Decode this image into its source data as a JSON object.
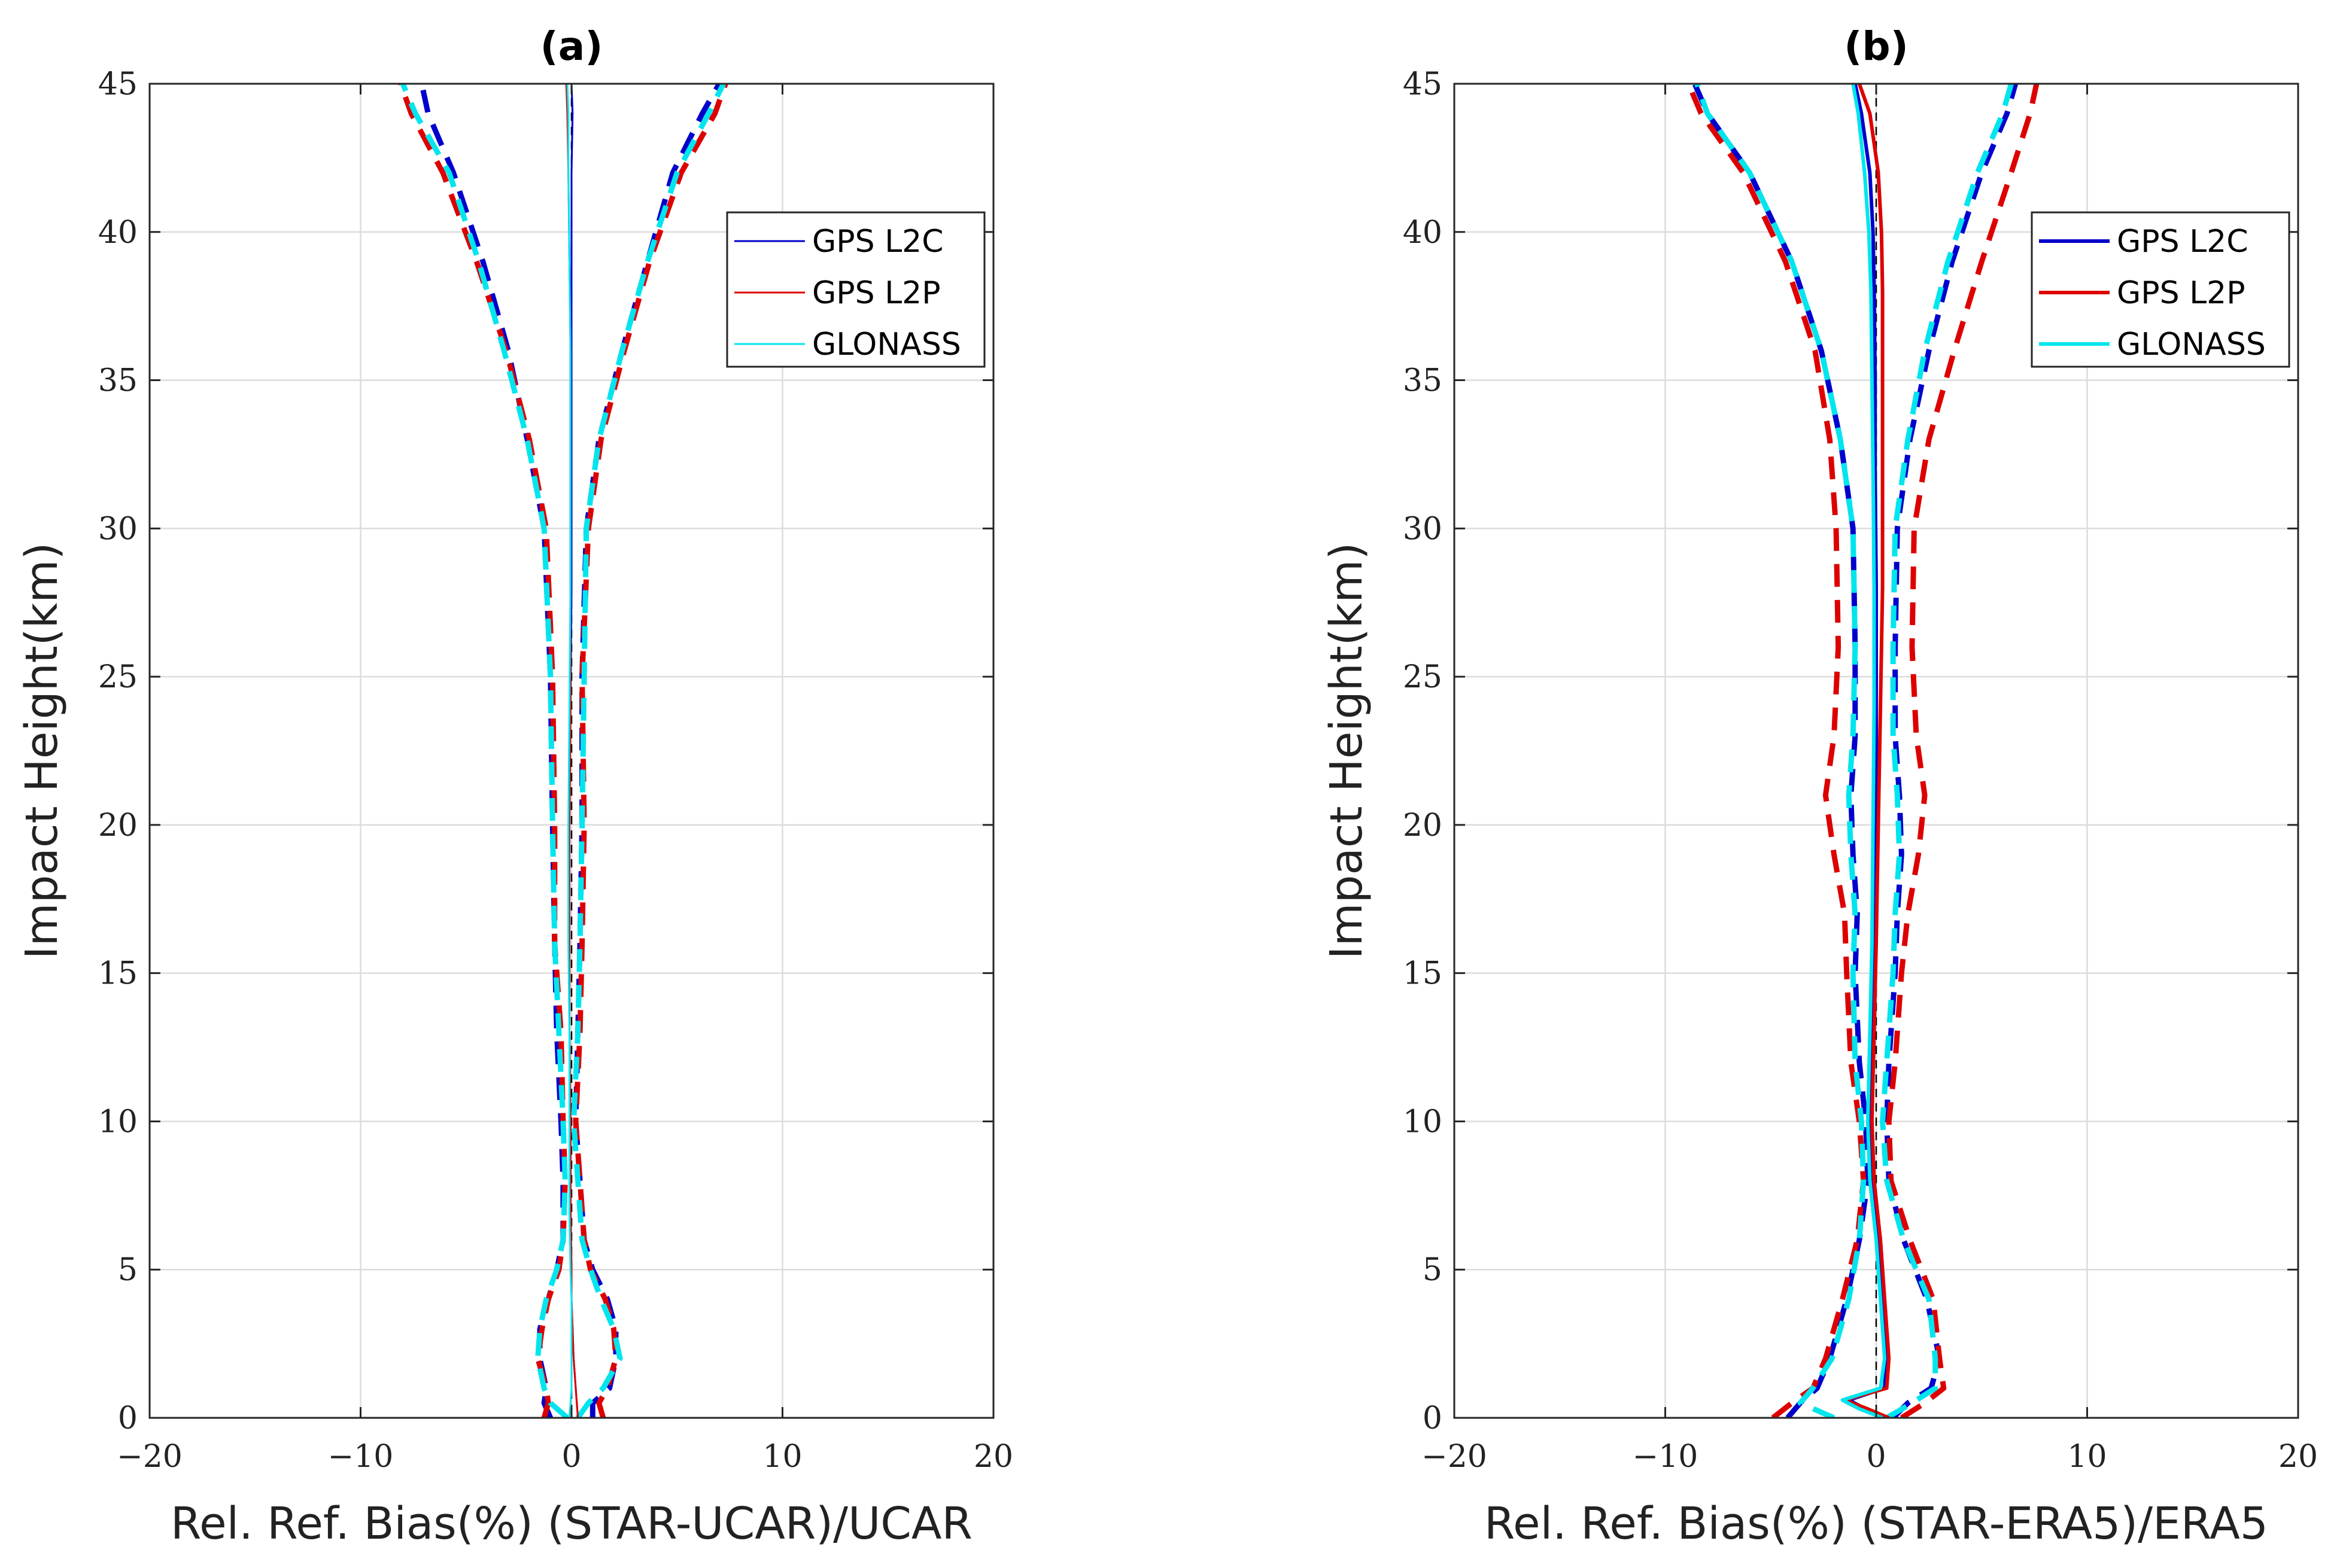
{
  "chart_data": [
    {
      "type": "line",
      "title": "(a)",
      "xlabel": "Rel. Ref. Bias(%) (STAR-UCAR)/UCAR",
      "ylabel": "Impact Height(km)",
      "xlim": [
        -20,
        20
      ],
      "ylim": [
        0,
        45
      ],
      "xticks": [
        "−20",
        "−10",
        "0",
        "10",
        "20"
      ],
      "yticks": [
        "0",
        "5",
        "10",
        "15",
        "20",
        "25",
        "30",
        "35",
        "40",
        "45"
      ],
      "grid": true,
      "legend_position": "top-right",
      "legend": [
        "GPS L2C",
        "GPS L2P",
        "GLONASS"
      ],
      "series": [
        {
          "name": "GPS L2C",
          "color": "#0000cc",
          "style": "solid",
          "width": 3,
          "x": [
            0.3,
            0.25,
            0.2,
            0.1,
            0.05,
            0.0,
            0.0,
            -0.05,
            -0.05,
            -0.1,
            -0.1,
            -0.1,
            -0.05,
            0.0,
            0.0,
            0.0,
            0.0,
            0.0,
            0.05,
            0.0
          ],
          "y": [
            0,
            0.5,
            1,
            2,
            3,
            4,
            5,
            7,
            10,
            13,
            16,
            20,
            24,
            28,
            32,
            36,
            39,
            42,
            44,
            45
          ]
        },
        {
          "name": "GPS L2P",
          "color": "#dd0000",
          "style": "solid",
          "width": 3,
          "x": [
            0.3,
            0.25,
            0.2,
            0.1,
            0.05,
            0.0,
            0.0,
            -0.05,
            -0.05,
            -0.1,
            -0.1,
            -0.1,
            -0.05,
            -0.05,
            -0.05,
            -0.05,
            -0.1,
            -0.15,
            -0.2,
            -0.25
          ],
          "y": [
            0,
            0.5,
            1,
            2,
            3,
            4,
            5,
            7,
            10,
            13,
            16,
            20,
            24,
            28,
            32,
            36,
            39,
            42,
            44,
            45
          ]
        },
        {
          "name": "GLONASS",
          "color": "#00e5ee",
          "style": "solid",
          "width": 3,
          "x": [
            -0.1,
            -0.05,
            0.0,
            0.0,
            0.0,
            0.0,
            -0.05,
            -0.1,
            -0.1,
            -0.1,
            -0.15,
            -0.15,
            -0.1,
            -0.05,
            -0.05,
            -0.05,
            -0.1,
            -0.15,
            -0.15,
            -0.2
          ],
          "y": [
            0,
            0.5,
            1,
            2,
            3,
            4,
            5,
            7,
            10,
            13,
            16,
            20,
            24,
            28,
            32,
            36,
            39,
            42,
            44,
            45
          ]
        },
        {
          "name": "",
          "color": "#0000cc",
          "style": "dashed",
          "width": 9,
          "x": [
            -1.0,
            -1.3,
            -1.2,
            -1.5,
            -1.5,
            -1.1,
            -0.7,
            -0.4,
            -0.4,
            -0.5,
            -0.7,
            -0.8,
            -0.9,
            -1.0,
            -1.3,
            -2.1,
            -3.0,
            -4.2,
            -5.6,
            -6.8,
            -7.1
          ],
          "y": [
            0,
            0.5,
            1,
            2,
            3,
            4,
            5,
            6,
            8,
            10,
            13,
            16,
            20,
            25,
            30,
            33,
            36,
            39,
            42,
            44,
            45
          ]
        },
        {
          "name": "",
          "color": "#0000cc",
          "style": "dashed",
          "width": 9,
          "x": [
            1.0,
            1.0,
            1.8,
            2.1,
            2.1,
            1.7,
            1.0,
            0.6,
            0.4,
            0.2,
            0.3,
            0.4,
            0.5,
            0.5,
            0.7,
            1.3,
            2.4,
            3.6,
            4.8,
            6.2,
            7.0
          ],
          "y": [
            0,
            0.5,
            1,
            2,
            3,
            4,
            5,
            6,
            8,
            10,
            13,
            16,
            20,
            25,
            30,
            33,
            36,
            39,
            42,
            44,
            45
          ]
        },
        {
          "name": "",
          "color": "#dd0000",
          "style": "dashed",
          "width": 9,
          "x": [
            -1.3,
            -1.1,
            -1.2,
            -1.6,
            -1.4,
            -1.1,
            -0.6,
            -0.4,
            -0.3,
            -0.4,
            -0.5,
            -0.8,
            -0.8,
            -0.9,
            -1.2,
            -2.0,
            -3.1,
            -4.5,
            -6.1,
            -7.6,
            -8.1
          ],
          "y": [
            0,
            0.5,
            1,
            2,
            3,
            4,
            5,
            6,
            8,
            10,
            13,
            16,
            20,
            25,
            30,
            33,
            36,
            39,
            42,
            44,
            45
          ]
        },
        {
          "name": "",
          "color": "#dd0000",
          "style": "dashed",
          "width": 9,
          "x": [
            1.5,
            1.3,
            1.7,
            2.1,
            2.0,
            1.6,
            0.9,
            0.6,
            0.4,
            0.2,
            0.4,
            0.5,
            0.6,
            0.5,
            0.8,
            1.4,
            2.5,
            3.7,
            5.2,
            6.8,
            7.3
          ],
          "y": [
            0,
            0.5,
            1,
            2,
            3,
            4,
            5,
            6,
            8,
            10,
            13,
            16,
            20,
            25,
            30,
            33,
            36,
            39,
            42,
            44,
            45
          ]
        },
        {
          "name": "",
          "color": "#00e5ee",
          "style": "dashed",
          "width": 9,
          "x": [
            -0.2,
            -1.0,
            -1.3,
            -1.6,
            -1.5,
            -1.2,
            -0.7,
            -0.4,
            -0.3,
            -0.4,
            -0.6,
            -0.8,
            -0.9,
            -1.0,
            -1.3,
            -2.1,
            -3.2,
            -4.4,
            -5.8,
            -7.4,
            -8.0
          ],
          "y": [
            0,
            0.5,
            1,
            2,
            3,
            4,
            5,
            6,
            8,
            10,
            13,
            16,
            20,
            25,
            30,
            33,
            36,
            39,
            42,
            44,
            45
          ]
        },
        {
          "name": "",
          "color": "#00e5ee",
          "style": "dashed",
          "width": 9,
          "x": [
            0.3,
            0.8,
            1.5,
            2.3,
            2.0,
            1.4,
            0.9,
            0.5,
            0.3,
            0.1,
            0.3,
            0.4,
            0.5,
            0.6,
            0.7,
            1.3,
            2.4,
            3.6,
            5.0,
            6.5,
            7.2
          ],
          "y": [
            0,
            0.5,
            1,
            2,
            3,
            4,
            5,
            6,
            8,
            10,
            13,
            16,
            20,
            25,
            30,
            33,
            36,
            39,
            42,
            44,
            45
          ]
        }
      ]
    },
    {
      "type": "line",
      "title": "(b)",
      "xlabel": "Rel. Ref. Bias(%) (STAR-ERA5)/ERA5",
      "ylabel": "Impact Height(km)",
      "xlim": [
        -20,
        20
      ],
      "ylim": [
        0,
        45
      ],
      "xticks": [
        "−20",
        "−10",
        "0",
        "10",
        "20"
      ],
      "yticks": [
        "0",
        "5",
        "10",
        "15",
        "20",
        "25",
        "30",
        "35",
        "40",
        "45"
      ],
      "grid": true,
      "legend_position": "top-right",
      "legend": [
        "GPS L2C",
        "GPS L2P",
        "GLONASS"
      ],
      "series": [
        {
          "name": "GPS L2C",
          "color": "#0000cc",
          "style": "solid",
          "width": 6,
          "x": [
            0.5,
            -0.5,
            -1.3,
            0.4,
            0.5,
            0.3,
            0.1,
            -0.2,
            -0.3,
            -0.2,
            -0.1,
            0.0,
            0.0,
            0.0,
            -0.05,
            -0.05,
            -0.1,
            -0.15,
            -0.3,
            -0.7,
            -1.0
          ],
          "y": [
            0,
            0.3,
            0.6,
            1,
            2,
            4,
            6,
            8,
            10,
            13,
            16,
            20,
            24,
            28,
            32,
            35,
            38,
            40,
            42,
            44,
            45
          ]
        },
        {
          "name": "GPS L2P",
          "color": "#dd0000",
          "style": "solid",
          "width": 6,
          "x": [
            0.6,
            -0.4,
            -1.5,
            0.5,
            0.6,
            0.4,
            0.2,
            -0.1,
            -0.2,
            -0.1,
            0.0,
            0.1,
            0.2,
            0.3,
            0.3,
            0.3,
            0.3,
            0.25,
            0.1,
            -0.3,
            -0.8
          ],
          "y": [
            0,
            0.3,
            0.6,
            1,
            2,
            4,
            6,
            8,
            10,
            13,
            16,
            20,
            24,
            28,
            32,
            35,
            38,
            40,
            42,
            44,
            45
          ]
        },
        {
          "name": "GLONASS",
          "color": "#00e5ee",
          "style": "solid",
          "width": 6,
          "x": [
            0.3,
            -0.8,
            -1.6,
            0.2,
            0.4,
            0.2,
            0.0,
            -0.3,
            -0.4,
            -0.3,
            -0.2,
            -0.15,
            -0.1,
            -0.1,
            -0.15,
            -0.2,
            -0.25,
            -0.35,
            -0.55,
            -0.85,
            -1.1
          ],
          "y": [
            0,
            0.3,
            0.6,
            1,
            2,
            4,
            6,
            8,
            10,
            13,
            16,
            20,
            24,
            28,
            32,
            35,
            38,
            40,
            42,
            44,
            45
          ]
        },
        {
          "name": "",
          "color": "#0000cc",
          "style": "dashed",
          "width": 9,
          "x": [
            -4.2,
            -3.6,
            -2.8,
            -2.2,
            -1.4,
            -0.8,
            -0.4,
            -0.5,
            -0.8,
            -1.0,
            -0.9,
            -1.1,
            -1.2,
            -1.0,
            -1.0,
            -1.1,
            -1.7,
            -2.6,
            -4.0,
            -6.0,
            -8.0,
            -8.6
          ],
          "y": [
            0,
            0.5,
            1,
            2,
            4,
            6,
            8,
            10,
            12,
            15,
            17,
            19,
            21,
            23,
            26,
            30,
            33,
            36,
            39,
            42,
            44,
            45
          ]
        },
        {
          "name": "",
          "color": "#0000cc",
          "style": "dashed",
          "width": 9,
          "x": [
            0.8,
            1.5,
            2.6,
            3.0,
            2.4,
            1.3,
            0.6,
            0.5,
            0.6,
            0.9,
            1.0,
            1.2,
            1.1,
            0.9,
            0.9,
            1.0,
            1.6,
            2.5,
            3.6,
            5.0,
            6.2,
            6.6
          ],
          "y": [
            0,
            0.5,
            1,
            2,
            4,
            6,
            8,
            10,
            12,
            15,
            17,
            19,
            21,
            23,
            26,
            30,
            33,
            36,
            39,
            42,
            44,
            45
          ]
        },
        {
          "name": "",
          "color": "#dd0000",
          "style": "dashed",
          "width": 9,
          "x": [
            -4.9,
            -4.0,
            -3.0,
            -2.4,
            -1.6,
            -0.9,
            -0.6,
            -0.8,
            -1.2,
            -1.4,
            -1.5,
            -2.0,
            -2.4,
            -2.0,
            -1.8,
            -1.9,
            -2.2,
            -2.9,
            -4.3,
            -6.3,
            -8.3,
            -8.9
          ],
          "y": [
            0,
            0.5,
            1,
            2,
            4,
            6,
            8,
            10,
            12,
            15,
            17,
            19,
            21,
            23,
            26,
            30,
            33,
            36,
            39,
            42,
            44,
            45
          ]
        },
        {
          "name": "",
          "color": "#dd0000",
          "style": "dashed",
          "width": 9,
          "x": [
            1.2,
            2.3,
            3.2,
            3.0,
            2.7,
            1.6,
            0.7,
            0.6,
            0.9,
            1.2,
            1.5,
            2.0,
            2.3,
            1.9,
            1.7,
            1.8,
            2.5,
            3.7,
            5.0,
            6.4,
            7.3,
            7.6
          ],
          "y": [
            0,
            0.5,
            1,
            2,
            4,
            6,
            8,
            10,
            12,
            15,
            17,
            19,
            21,
            23,
            26,
            30,
            33,
            36,
            39,
            42,
            44,
            45
          ]
        },
        {
          "name": "",
          "color": "#00e5ee",
          "style": "dashed",
          "width": 9,
          "x": [
            -2.0,
            -3.6,
            -3.0,
            -2.1,
            -1.3,
            -0.8,
            -0.6,
            -0.7,
            -1.0,
            -1.1,
            -1.0,
            -1.2,
            -1.3,
            -1.1,
            -1.0,
            -1.1,
            -1.7,
            -2.6,
            -4.0,
            -6.0,
            -8.0,
            -8.5
          ],
          "y": [
            0,
            0.5,
            1,
            2,
            4,
            6,
            8,
            10,
            12,
            15,
            17,
            19,
            21,
            23,
            26,
            30,
            33,
            36,
            39,
            42,
            44,
            45
          ]
        },
        {
          "name": "",
          "color": "#00e5ee",
          "style": "dashed",
          "width": 9,
          "x": [
            0.5,
            1.7,
            2.8,
            2.8,
            2.5,
            1.3,
            0.5,
            0.3,
            0.5,
            0.8,
            0.9,
            1.1,
            1.0,
            0.8,
            0.8,
            0.9,
            1.5,
            2.3,
            3.4,
            4.8,
            6.0,
            6.4
          ],
          "y": [
            0,
            0.5,
            1,
            2,
            4,
            6,
            8,
            10,
            12,
            15,
            17,
            19,
            21,
            23,
            26,
            30,
            33,
            36,
            39,
            42,
            44,
            45
          ]
        }
      ]
    }
  ]
}
